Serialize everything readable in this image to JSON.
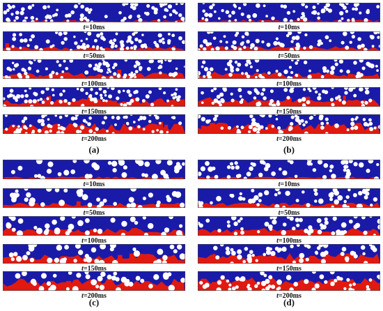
{
  "figure": {
    "colors": {
      "upper_phase": "#1a1aa8",
      "lower_phase": "#e01a10",
      "particle": "#ffffff"
    },
    "panels": [
      {
        "caption": "(a)",
        "strips": [
          {
            "t": "t",
            "label": "=10ms"
          },
          {
            "t": "t",
            "label": "=50ms"
          },
          {
            "t": "t",
            "label": "=100ms"
          },
          {
            "t": "t",
            "label": "=150ms"
          },
          {
            "t": "t",
            "label": "=200ms"
          }
        ]
      },
      {
        "caption": "(b)",
        "strips": [
          {
            "t": "t",
            "label": "=10ms"
          },
          {
            "t": "t",
            "label": "=50ms"
          },
          {
            "t": "t",
            "label": "=100ms"
          },
          {
            "t": "t",
            "label": "=150ms"
          },
          {
            "t": "t",
            "label": "=200ms"
          }
        ]
      },
      {
        "caption": "(c)",
        "strips": [
          {
            "t": "t",
            "label": "=10ms"
          },
          {
            "t": "t",
            "label": "=50ms"
          },
          {
            "t": "t",
            "label": "=100ms"
          },
          {
            "t": "t",
            "label": "=150ms"
          },
          {
            "t": "t",
            "label": "=200ms"
          }
        ]
      },
      {
        "caption": "(d)",
        "strips": [
          {
            "t": "t",
            "label": "=10ms"
          },
          {
            "t": "t",
            "label": "=50ms"
          },
          {
            "t": "t",
            "label": "=100ms"
          },
          {
            "t": "t",
            "label": "=150ms"
          },
          {
            "t": "t",
            "label": "=200ms"
          }
        ]
      }
    ]
  }
}
